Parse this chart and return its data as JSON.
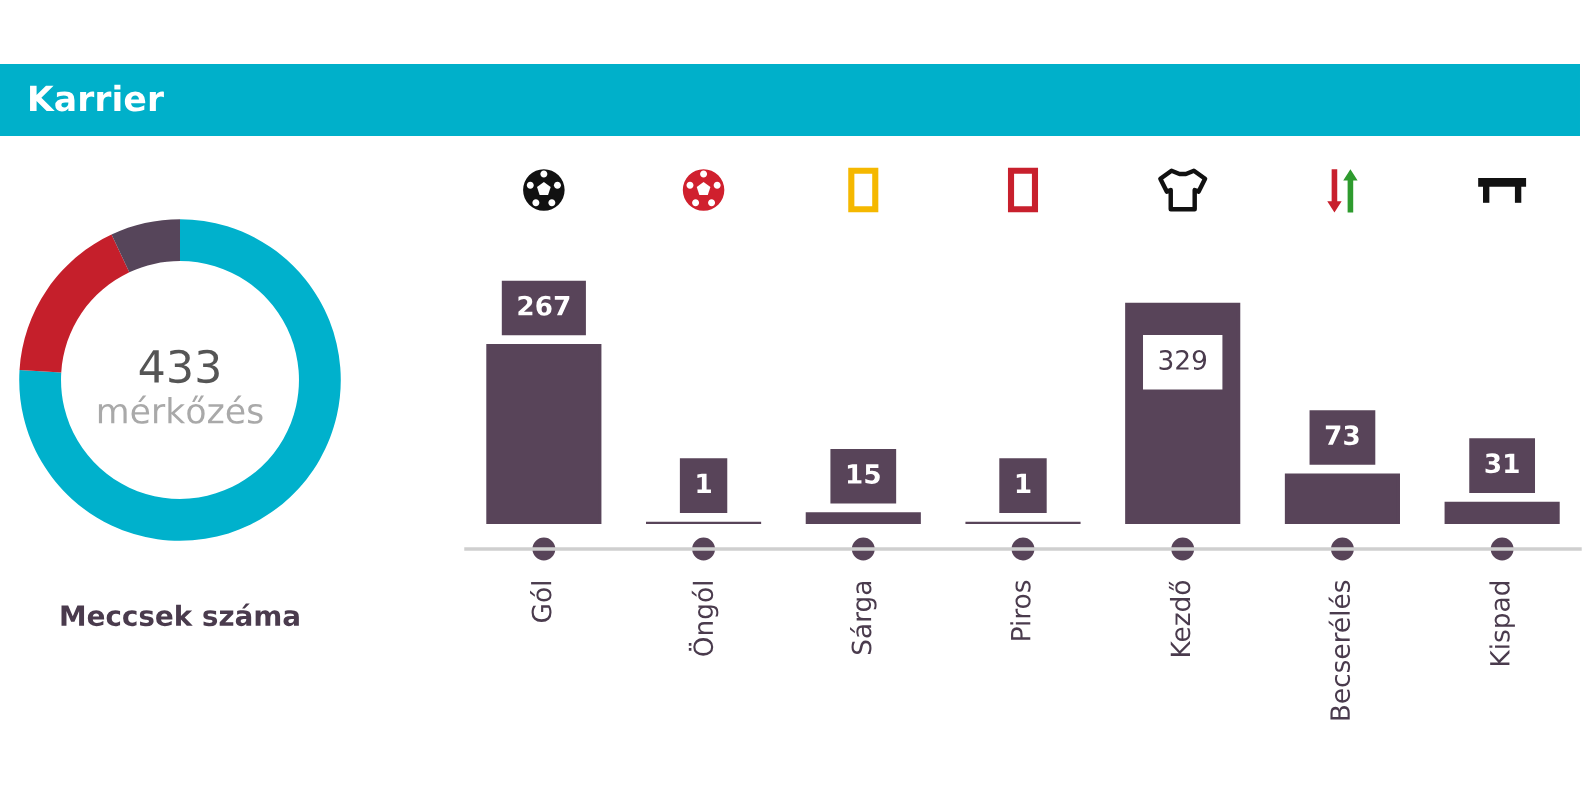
{
  "chart_data": [
    {
      "type": "other",
      "title": "Karrier",
      "color": "#00b0ca"
    },
    {
      "type": "donut",
      "title": "Meccsek száma",
      "categories": [
        null,
        null,
        null
      ],
      "values": [
        76,
        17,
        7
      ],
      "colors": [
        "#00b1cc",
        "#c51f2b",
        "#56455a"
      ],
      "annotations": [
        "433",
        "mérkőzés"
      ]
    },
    {
      "type": "bar",
      "categories": [
        "Gól",
        "Öngól",
        "Sárga",
        "Piros",
        "Kezdő",
        "Becserélés",
        "Kispad"
      ],
      "values": [
        267,
        1,
        15,
        1,
        329,
        73,
        31
      ],
      "color": "#584459",
      "data_labels": true,
      "tick_labels": "x",
      "grid": false
    }
  ]
}
